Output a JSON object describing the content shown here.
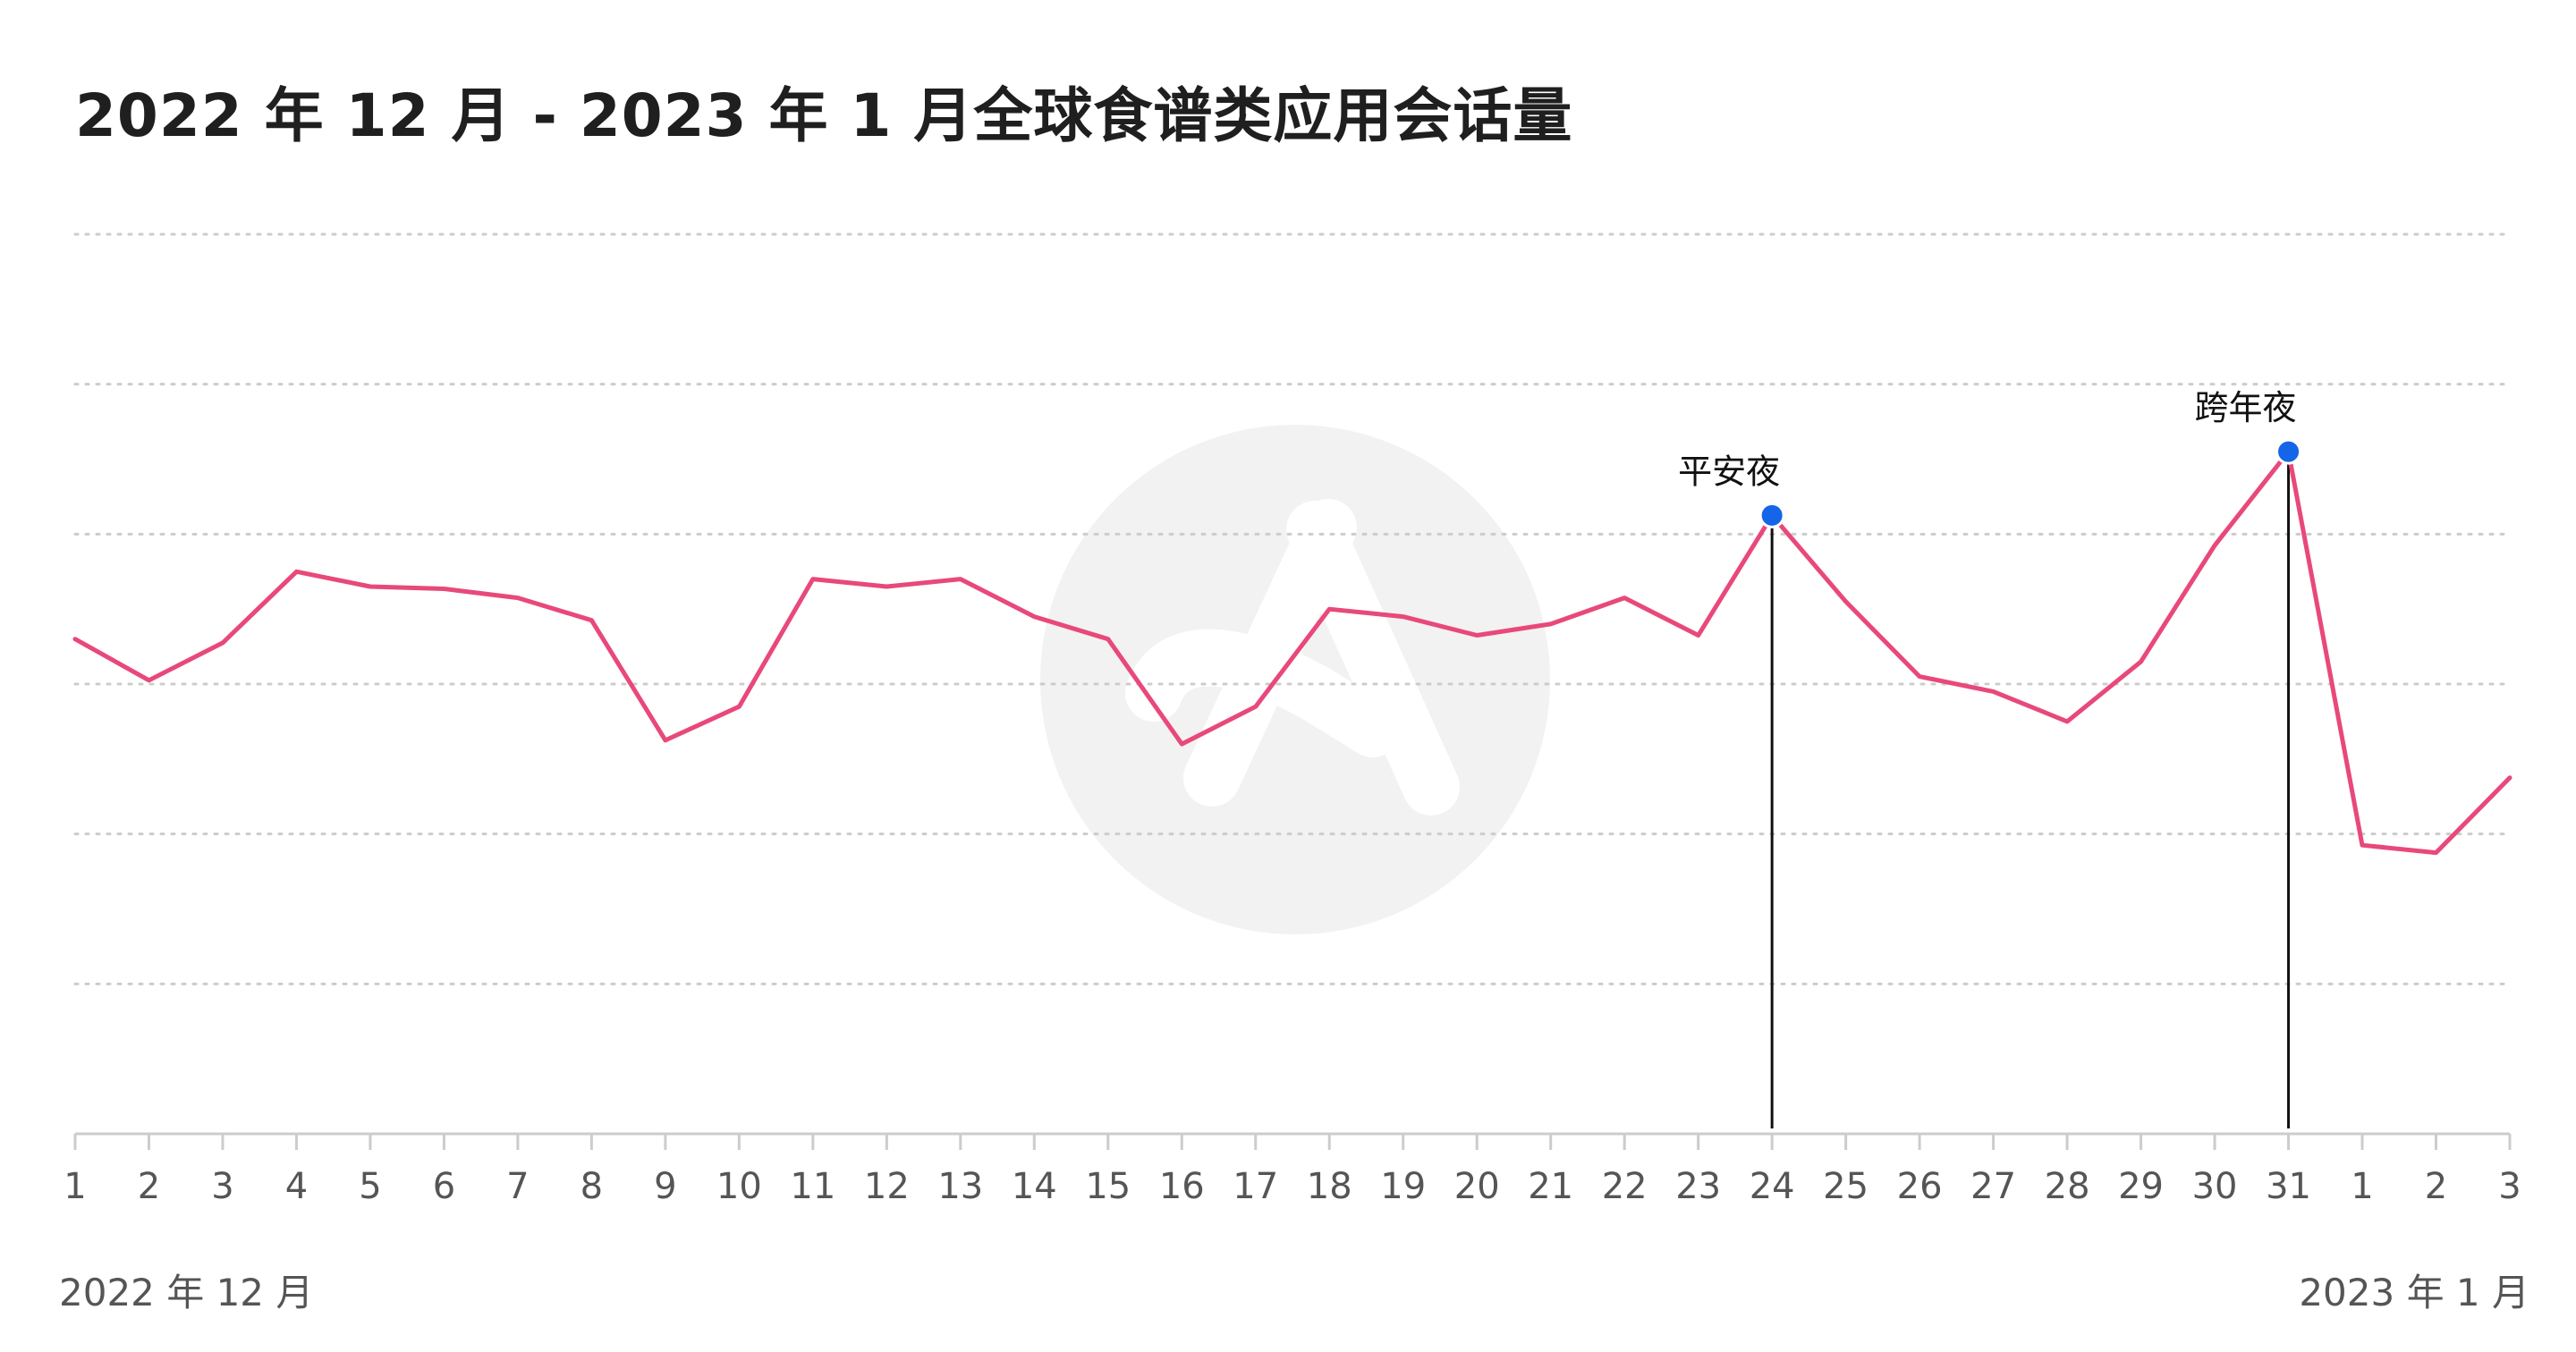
{
  "title": "2022 年 12 月 - 2023 年 1 月全球食谱类应用会话量",
  "period_labels": {
    "start": "2022 年 12 月",
    "end": "2023 年 1 月"
  },
  "colors": {
    "line": "#e8497a",
    "marker": "#1565e8",
    "grid": "#cccccc",
    "axis": "#cccccc",
    "title": "#1f1f1f",
    "tick_text": "#555555"
  },
  "watermark_icon": "app-logo-icon",
  "chart_data": {
    "type": "line",
    "title": "2022 年 12 月 - 2023 年 1 月全球食谱类应用会话量",
    "categories": [
      "1",
      "2",
      "3",
      "4",
      "5",
      "6",
      "7",
      "8",
      "9",
      "10",
      "11",
      "12",
      "13",
      "14",
      "15",
      "16",
      "17",
      "18",
      "19",
      "20",
      "21",
      "22",
      "23",
      "24",
      "25",
      "26",
      "27",
      "28",
      "29",
      "30",
      "31",
      "1",
      "2",
      "3"
    ],
    "series": [
      {
        "values": [
          66,
          60.5,
          65.5,
          75,
          73,
          72.7,
          71.5,
          68.5,
          52.5,
          57,
          74,
          73,
          74,
          69,
          66,
          52,
          57,
          70,
          69,
          66.5,
          68,
          71.5,
          66.5,
          82.5,
          71,
          61,
          59,
          55,
          63,
          78.5,
          91,
          38.5,
          37.5,
          47.5
        ]
      }
    ],
    "ylim": [
      0,
      120
    ],
    "grid": true,
    "annotations": [
      {
        "index": 23,
        "label": "平安夜"
      },
      {
        "index": 30,
        "label": "跨年夜"
      }
    ]
  }
}
